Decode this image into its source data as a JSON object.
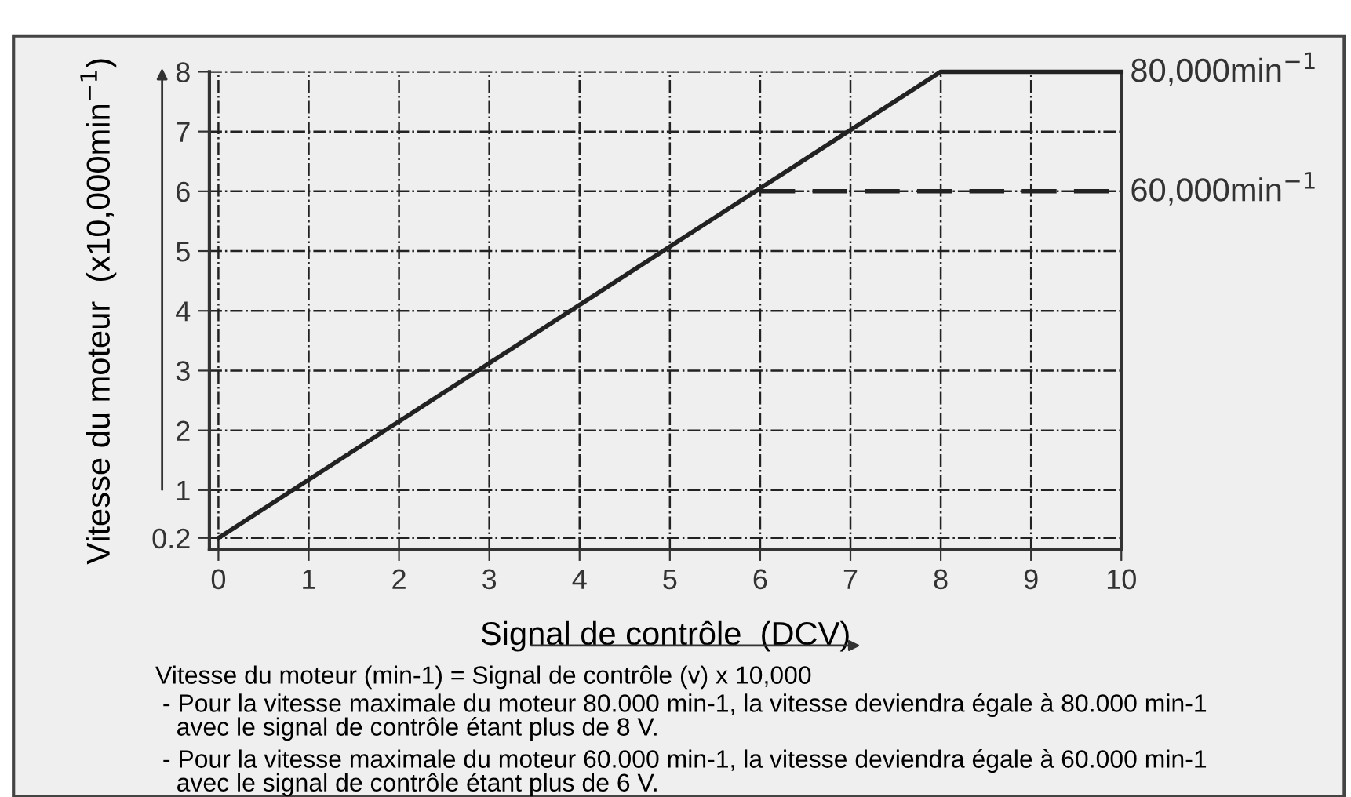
{
  "chart_data": {
    "type": "line",
    "xlabel": "Signal de contrôle  (DCV)",
    "ylabel": "Vitesse du moteur  (x10,000min$^{−1}$)",
    "series": [
      {
        "x": [
          0,
          8,
          10
        ],
        "values": [
          0.2,
          8,
          8
        ],
        "color": "#222222",
        "line_style": "solid"
      },
      {
        "x": [
          6,
          10
        ],
        "values": [
          6,
          6
        ],
        "color": "#222222",
        "line_style": "dashed"
      }
    ],
    "xlim": [
      -0.1,
      10
    ],
    "xticks": [
      0,
      1,
      2,
      3,
      4,
      5,
      6,
      7,
      8,
      9,
      10
    ],
    "ylim": [
      0,
      8
    ],
    "yticks": [
      0.2,
      1,
      2,
      3,
      4,
      5,
      6,
      7,
      8
    ],
    "grid": true,
    "marker": "none",
    "annotations": [
      {
        "text": "80,000min$^{−1}$",
        "x": 10,
        "y": 8
      },
      {
        "text": "60,000min$^{−1}$",
        "x": 10,
        "y": 6
      },
      "Vitesse du moteur (min-1) = Signal de contrôle (v) x 10,000",
      " - Pour la vitesse maximale du moteur 80.000 min-1, la vitesse deviendra égale à 80.000 min-1\n   avec le signal de contrôle étant plus de 8 V.",
      " - Pour la vitesse maximale du moteur 60.000 min-1, la vitesse deviendra égale à 60.000 min-1\n   avec le signal de contrôle étant plus de 6 V."
    ]
  }
}
